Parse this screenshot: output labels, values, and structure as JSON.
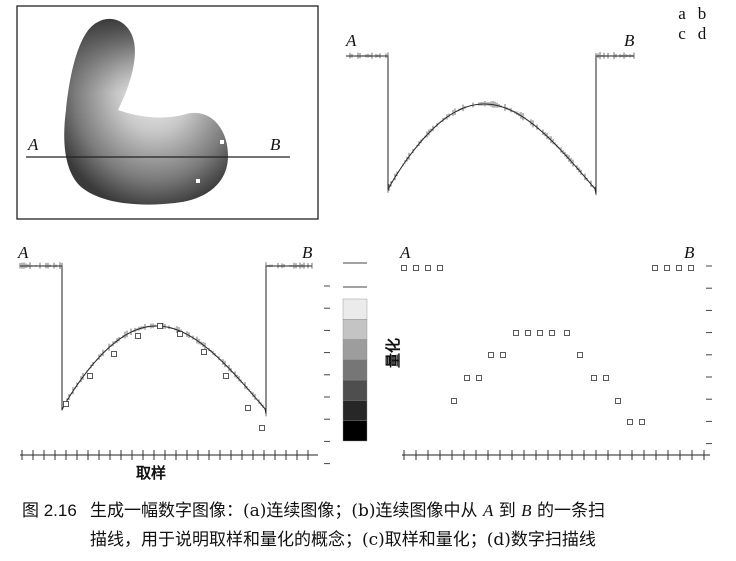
{
  "panel_letters": {
    "a": "a",
    "b": "b",
    "c": "c",
    "d": "d"
  },
  "labels": {
    "start": "A",
    "end": "B"
  },
  "axis_labels": {
    "sampling": "取样",
    "quantization": "量化"
  },
  "caption": {
    "number": "图 2.16",
    "line1_parts": [
      "生成一幅数字图像：(a)连续图像；(b)连续图像中从",
      "A",
      "到",
      "B",
      "的一条扫"
    ],
    "line2": "描线，用于说明取样和量化的概念；(c)取样和量化；(d)数字扫描线"
  },
  "colors": {
    "ink": "#111111",
    "frame": "#222222"
  },
  "quantization_levels": 8
}
